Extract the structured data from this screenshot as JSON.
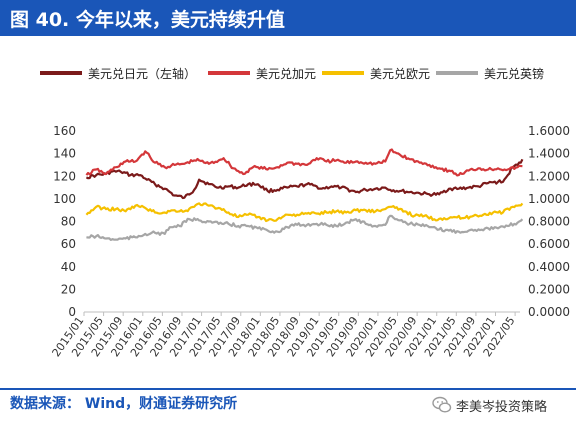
{
  "figure": {
    "title": "图 40. 今年以来，美元持续升值",
    "source": "数据来源： Wind，财通证券研究所",
    "brand": "李美岑投资策略"
  },
  "colors": {
    "title_bar": "#1a56b8",
    "source_text": "#1a56b8"
  },
  "chart_data": {
    "type": "line",
    "legend_position": "top",
    "grid": false,
    "x_tick_labels": [
      "2015/01",
      "2015/05",
      "2015/09",
      "2016/01",
      "2016/05",
      "2016/09",
      "2017/01",
      "2017/05",
      "2017/09",
      "2018/01",
      "2018/05",
      "2018/09",
      "2019/01",
      "2019/05",
      "2019/09",
      "2020/01",
      "2020/05",
      "2020/09",
      "2021/01",
      "2021/05",
      "2021/09",
      "2022/01",
      "2022/05"
    ],
    "y_left": {
      "range": [
        0,
        160
      ],
      "ticks": [
        "0",
        "20",
        "40",
        "60",
        "80",
        "100",
        "120",
        "140",
        "160"
      ]
    },
    "y_right": {
      "range": [
        0,
        1.6
      ],
      "ticks": [
        "0.0000",
        "0.2000",
        "0.4000",
        "0.6000",
        "0.8000",
        "1.0000",
        "1.2000",
        "1.4000",
        "1.6000"
      ]
    },
    "series": [
      {
        "name": "美元兑日元（左轴）",
        "axis": "left",
        "color": "#7b1a1a",
        "points": [
          [
            "2015/01",
            119
          ],
          [
            "2015/03",
            121
          ],
          [
            "2015/05",
            122
          ],
          [
            "2015/06",
            124
          ],
          [
            "2015/08",
            124
          ],
          [
            "2015/10",
            121
          ],
          [
            "2015/12",
            121
          ],
          [
            "2016/01",
            118
          ],
          [
            "2016/03",
            113
          ],
          [
            "2016/05",
            109
          ],
          [
            "2016/07",
            103
          ],
          [
            "2016/09",
            101
          ],
          [
            "2016/11",
            108
          ],
          [
            "2016/12",
            117
          ],
          [
            "2017/02",
            113
          ],
          [
            "2017/04",
            110
          ],
          [
            "2017/06",
            111
          ],
          [
            "2017/08",
            110
          ],
          [
            "2017/10",
            113
          ],
          [
            "2017/12",
            113
          ],
          [
            "2018/02",
            107
          ],
          [
            "2018/04",
            108
          ],
          [
            "2018/06",
            110
          ],
          [
            "2018/08",
            111
          ],
          [
            "2018/10",
            113
          ],
          [
            "2018/12",
            111
          ],
          [
            "2019/01",
            109
          ],
          [
            "2019/03",
            111
          ],
          [
            "2019/05",
            110
          ],
          [
            "2019/08",
            106
          ],
          [
            "2019/10",
            108
          ],
          [
            "2019/12",
            109
          ],
          [
            "2020/02",
            110
          ],
          [
            "2020/03",
            108
          ],
          [
            "2020/05",
            107
          ],
          [
            "2020/07",
            106
          ],
          [
            "2020/09",
            105
          ],
          [
            "2020/11",
            104
          ],
          [
            "2021/01",
            104
          ],
          [
            "2021/03",
            109
          ],
          [
            "2021/05",
            109
          ],
          [
            "2021/07",
            110
          ],
          [
            "2021/09",
            111
          ],
          [
            "2021/11",
            114
          ],
          [
            "2022/01",
            115
          ],
          [
            "2022/02",
            115
          ],
          [
            "2022/03",
            121
          ],
          [
            "2022/04",
            128
          ],
          [
            "2022/05",
            130
          ],
          [
            "2022/06",
            135
          ]
        ]
      },
      {
        "name": "美元兑加元",
        "axis": "right",
        "color": "#d4373a",
        "points": [
          [
            "2015/01",
            1.21
          ],
          [
            "2015/03",
            1.26
          ],
          [
            "2015/05",
            1.22
          ],
          [
            "2015/07",
            1.28
          ],
          [
            "2015/09",
            1.33
          ],
          [
            "2015/11",
            1.33
          ],
          [
            "2016/01",
            1.42
          ],
          [
            "2016/02",
            1.37
          ],
          [
            "2016/03",
            1.32
          ],
          [
            "2016/05",
            1.28
          ],
          [
            "2016/07",
            1.3
          ],
          [
            "2016/09",
            1.31
          ],
          [
            "2016/11",
            1.34
          ],
          [
            "2016/12",
            1.34
          ],
          [
            "2017/02",
            1.31
          ],
          [
            "2017/04",
            1.34
          ],
          [
            "2017/05",
            1.36
          ],
          [
            "2017/07",
            1.27
          ],
          [
            "2017/09",
            1.22
          ],
          [
            "2017/11",
            1.28
          ],
          [
            "2017/12",
            1.28
          ],
          [
            "2018/02",
            1.26
          ],
          [
            "2018/04",
            1.28
          ],
          [
            "2018/06",
            1.32
          ],
          [
            "2018/08",
            1.31
          ],
          [
            "2018/10",
            1.3
          ],
          [
            "2018/12",
            1.36
          ],
          [
            "2019/02",
            1.33
          ],
          [
            "2019/04",
            1.34
          ],
          [
            "2019/06",
            1.32
          ],
          [
            "2019/08",
            1.33
          ],
          [
            "2019/10",
            1.32
          ],
          [
            "2019/12",
            1.31
          ],
          [
            "2020/02",
            1.33
          ],
          [
            "2020/03",
            1.43
          ],
          [
            "2020/05",
            1.39
          ],
          [
            "2020/07",
            1.35
          ],
          [
            "2020/09",
            1.32
          ],
          [
            "2020/11",
            1.3
          ],
          [
            "2021/01",
            1.27
          ],
          [
            "2021/03",
            1.25
          ],
          [
            "2021/05",
            1.21
          ],
          [
            "2021/07",
            1.25
          ],
          [
            "2021/09",
            1.27
          ],
          [
            "2021/11",
            1.26
          ],
          [
            "2022/01",
            1.27
          ],
          [
            "2022/03",
            1.26
          ],
          [
            "2022/05",
            1.28
          ],
          [
            "2022/06",
            1.29
          ]
        ]
      },
      {
        "name": "美元兑欧元",
        "axis": "right",
        "color": "#f5c000",
        "points": [
          [
            "2015/01",
            0.86
          ],
          [
            "2015/03",
            0.93
          ],
          [
            "2015/05",
            0.91
          ],
          [
            "2015/07",
            0.91
          ],
          [
            "2015/09",
            0.89
          ],
          [
            "2015/11",
            0.94
          ],
          [
            "2016/01",
            0.92
          ],
          [
            "2016/03",
            0.88
          ],
          [
            "2016/05",
            0.88
          ],
          [
            "2016/07",
            0.9
          ],
          [
            "2016/09",
            0.89
          ],
          [
            "2016/11",
            0.93
          ],
          [
            "2016/12",
            0.96
          ],
          [
            "2017/02",
            0.94
          ],
          [
            "2017/04",
            0.92
          ],
          [
            "2017/06",
            0.88
          ],
          [
            "2017/08",
            0.84
          ],
          [
            "2017/10",
            0.86
          ],
          [
            "2017/12",
            0.84
          ],
          [
            "2018/02",
            0.81
          ],
          [
            "2018/04",
            0.82
          ],
          [
            "2018/06",
            0.86
          ],
          [
            "2018/08",
            0.86
          ],
          [
            "2018/10",
            0.87
          ],
          [
            "2018/12",
            0.87
          ],
          [
            "2019/02",
            0.88
          ],
          [
            "2019/04",
            0.89
          ],
          [
            "2019/06",
            0.88
          ],
          [
            "2019/08",
            0.9
          ],
          [
            "2019/10",
            0.9
          ],
          [
            "2019/12",
            0.89
          ],
          [
            "2020/02",
            0.91
          ],
          [
            "2020/03",
            0.93
          ],
          [
            "2020/04",
            0.92
          ],
          [
            "2020/06",
            0.89
          ],
          [
            "2020/08",
            0.85
          ],
          [
            "2020/10",
            0.85
          ],
          [
            "2020/12",
            0.82
          ],
          [
            "2021/02",
            0.83
          ],
          [
            "2021/04",
            0.84
          ],
          [
            "2021/06",
            0.83
          ],
          [
            "2021/08",
            0.85
          ],
          [
            "2021/10",
            0.86
          ],
          [
            "2021/12",
            0.88
          ],
          [
            "2022/02",
            0.88
          ],
          [
            "2022/04",
            0.93
          ],
          [
            "2022/05",
            0.94
          ],
          [
            "2022/06",
            0.96
          ]
        ]
      },
      {
        "name": "美元兑英镑",
        "axis": "right",
        "color": "#a6a6a6",
        "points": [
          [
            "2015/01",
            0.66
          ],
          [
            "2015/03",
            0.67
          ],
          [
            "2015/05",
            0.65
          ],
          [
            "2015/07",
            0.64
          ],
          [
            "2015/09",
            0.65
          ],
          [
            "2015/11",
            0.66
          ],
          [
            "2016/01",
            0.69
          ],
          [
            "2016/03",
            0.7
          ],
          [
            "2016/05",
            0.69
          ],
          [
            "2016/06",
            0.75
          ],
          [
            "2016/08",
            0.76
          ],
          [
            "2016/10",
            0.82
          ],
          [
            "2016/12",
            0.81
          ],
          [
            "2017/02",
            0.8
          ],
          [
            "2017/04",
            0.78
          ],
          [
            "2017/06",
            0.78
          ],
          [
            "2017/08",
            0.76
          ],
          [
            "2017/10",
            0.76
          ],
          [
            "2017/12",
            0.74
          ],
          [
            "2018/02",
            0.72
          ],
          [
            "2018/04",
            0.71
          ],
          [
            "2018/06",
            0.75
          ],
          [
            "2018/08",
            0.77
          ],
          [
            "2018/10",
            0.77
          ],
          [
            "2018/12",
            0.78
          ],
          [
            "2019/02",
            0.77
          ],
          [
            "2019/04",
            0.76
          ],
          [
            "2019/06",
            0.79
          ],
          [
            "2019/08",
            0.82
          ],
          [
            "2019/10",
            0.78
          ],
          [
            "2019/12",
            0.76
          ],
          [
            "2020/02",
            0.77
          ],
          [
            "2020/03",
            0.85
          ],
          [
            "2020/05",
            0.81
          ],
          [
            "2020/07",
            0.78
          ],
          [
            "2020/09",
            0.77
          ],
          [
            "2020/11",
            0.75
          ],
          [
            "2021/01",
            0.73
          ],
          [
            "2021/03",
            0.72
          ],
          [
            "2021/05",
            0.71
          ],
          [
            "2021/07",
            0.72
          ],
          [
            "2021/09",
            0.73
          ],
          [
            "2021/11",
            0.74
          ],
          [
            "2022/01",
            0.74
          ],
          [
            "2022/03",
            0.76
          ],
          [
            "2022/05",
            0.79
          ],
          [
            "2022/06",
            0.82
          ]
        ]
      }
    ]
  }
}
